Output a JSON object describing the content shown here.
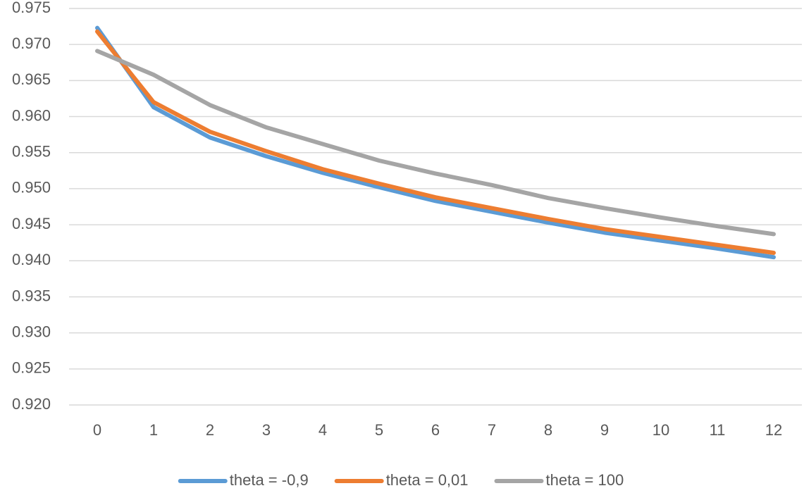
{
  "chart_data": {
    "type": "line",
    "categories": [
      0,
      1,
      2,
      3,
      4,
      5,
      6,
      7,
      8,
      9,
      10,
      11,
      12
    ],
    "series": [
      {
        "name": "theta = -0,9",
        "color": "#5b9bd5",
        "values": [
          0.9723,
          0.9613,
          0.9571,
          0.9545,
          0.9522,
          0.9502,
          0.9483,
          0.9468,
          0.9453,
          0.9439,
          0.9428,
          0.9417,
          0.9405
        ]
      },
      {
        "name": "theta = 0,01",
        "color": "#ed7d31",
        "values": [
          0.9718,
          0.962,
          0.9579,
          0.9552,
          0.9527,
          0.9507,
          0.9488,
          0.9473,
          0.9458,
          0.9444,
          0.9433,
          0.9422,
          0.9411
        ]
      },
      {
        "name": "theta = 100",
        "color": "#a5a5a5",
        "values": [
          0.9691,
          0.9658,
          0.9616,
          0.9585,
          0.9562,
          0.9539,
          0.9521,
          0.9505,
          0.9487,
          0.9473,
          0.946,
          0.9448,
          0.9437
        ]
      }
    ],
    "ylim": [
      0.92,
      0.975
    ],
    "yticks": [
      {
        "value": 0.92,
        "label": "0.920"
      },
      0.925,
      {
        "value": 0.93,
        "label": "0.930"
      },
      0.935,
      {
        "value": 0.94,
        "label": "0.940"
      },
      0.945,
      {
        "value": 0.95,
        "label": "0.950"
      },
      0.955,
      {
        "value": 0.96,
        "label": "0.960"
      },
      0.965,
      {
        "value": 0.97,
        "label": "0.970"
      },
      0.975
    ],
    "grid": true,
    "legend": "bottom"
  }
}
